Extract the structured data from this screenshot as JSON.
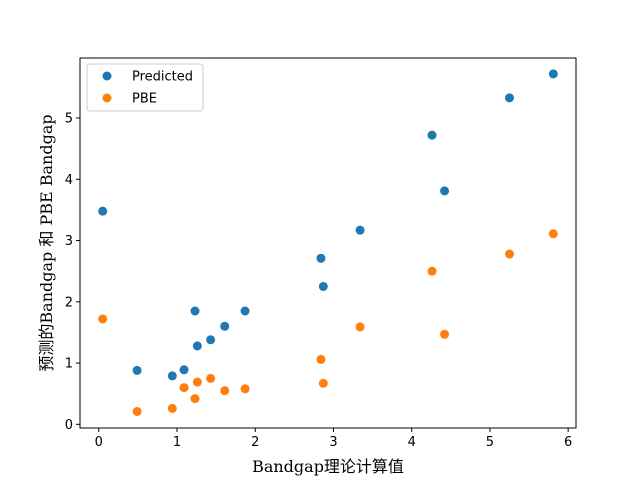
{
  "chart_data": {
    "type": "scatter",
    "xlabel": "Bandgap理论计算值",
    "ylabel": "预测的Bandgap 和 PBE Bandgap",
    "xlim": [
      -0.24,
      6.1
    ],
    "ylim": [
      -0.06,
      5.98
    ],
    "x_ticks": [
      0,
      1,
      2,
      3,
      4,
      5,
      6
    ],
    "y_ticks": [
      0,
      1,
      2,
      3,
      4,
      5
    ],
    "grid": false,
    "legend_position": "top-left",
    "series": [
      {
        "name": "Predicted",
        "color": "#1f77b4",
        "x": [
          0.05,
          0.49,
          0.94,
          1.09,
          1.23,
          1.26,
          1.43,
          1.61,
          1.87,
          2.84,
          2.87,
          3.34,
          4.26,
          4.42,
          5.25,
          5.81
        ],
        "y": [
          3.48,
          0.88,
          0.79,
          0.89,
          1.85,
          1.28,
          1.38,
          1.6,
          1.85,
          2.71,
          2.25,
          3.17,
          4.72,
          3.81,
          5.33,
          5.72
        ]
      },
      {
        "name": "PBE",
        "color": "#ff7f0e",
        "x": [
          0.05,
          0.49,
          0.94,
          1.09,
          1.23,
          1.26,
          1.43,
          1.61,
          1.87,
          2.84,
          2.87,
          3.34,
          4.26,
          4.42,
          5.25,
          5.81
        ],
        "y": [
          1.72,
          0.21,
          0.26,
          0.6,
          0.42,
          0.69,
          0.75,
          0.55,
          0.58,
          1.06,
          0.67,
          1.59,
          2.5,
          1.47,
          2.78,
          3.11
        ]
      }
    ]
  }
}
